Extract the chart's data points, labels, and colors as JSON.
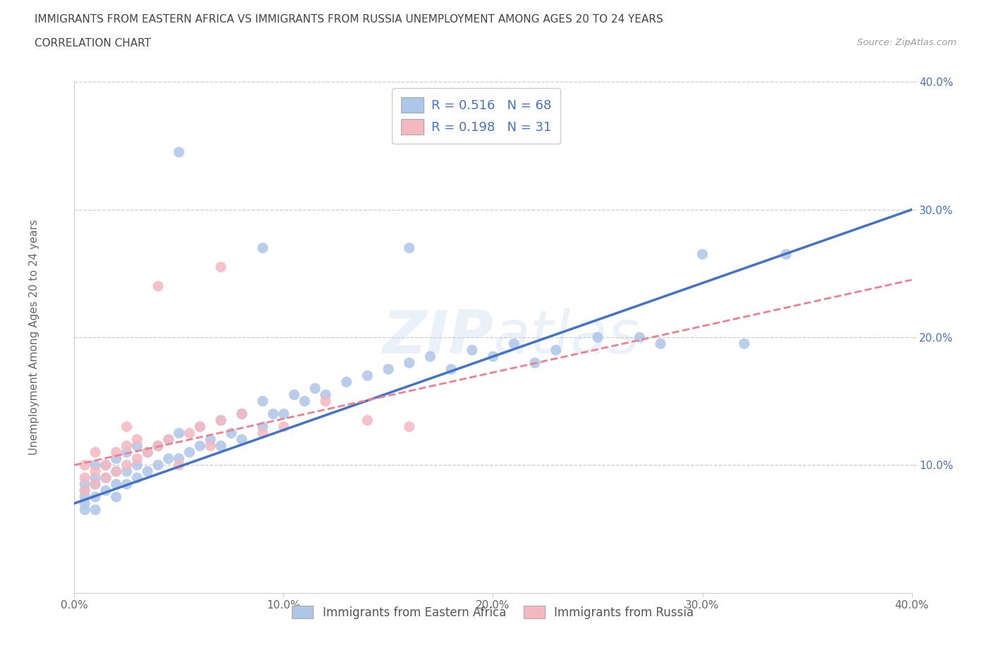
{
  "title_line1": "IMMIGRANTS FROM EASTERN AFRICA VS IMMIGRANTS FROM RUSSIA UNEMPLOYMENT AMONG AGES 20 TO 24 YEARS",
  "title_line2": "CORRELATION CHART",
  "source_text": "Source: ZipAtlas.com",
  "ylabel": "Unemployment Among Ages 20 to 24 years",
  "xlim": [
    0.0,
    0.4
  ],
  "ylim": [
    0.0,
    0.4
  ],
  "xticks": [
    0.0,
    0.1,
    0.2,
    0.3,
    0.4
  ],
  "yticks": [
    0.1,
    0.2,
    0.3,
    0.4
  ],
  "xticklabels": [
    "0.0%",
    "10.0%",
    "20.0%",
    "30.0%",
    "40.0%"
  ],
  "yticklabels": [
    "10.0%",
    "20.0%",
    "30.0%",
    "40.0%"
  ],
  "grid_color": "#cccccc",
  "background_color": "#ffffff",
  "watermark_text": "ZIPatlas",
  "ea_color": "#aec6e8",
  "ru_color": "#f4b8c1",
  "ea_line_color": "#4472c4",
  "ru_line_color": "#f08090",
  "legend_text_color": "#4472c4",
  "ytick_color": "#4472c4",
  "series": [
    {
      "label": "Immigrants from Eastern Africa",
      "R": 0.516,
      "N": 68,
      "x": [
        0.005,
        0.005,
        0.005,
        0.005,
        0.005,
        0.01,
        0.01,
        0.01,
        0.01,
        0.01,
        0.015,
        0.015,
        0.015,
        0.02,
        0.02,
        0.02,
        0.02,
        0.025,
        0.025,
        0.025,
        0.03,
        0.03,
        0.03,
        0.035,
        0.035,
        0.04,
        0.04,
        0.045,
        0.045,
        0.05,
        0.05,
        0.055,
        0.06,
        0.06,
        0.065,
        0.07,
        0.07,
        0.075,
        0.08,
        0.08,
        0.09,
        0.09,
        0.095,
        0.1,
        0.105,
        0.11,
        0.115,
        0.12,
        0.13,
        0.14,
        0.15,
        0.16,
        0.17,
        0.18,
        0.19,
        0.2,
        0.21,
        0.22,
        0.23,
        0.25,
        0.27,
        0.28,
        0.3,
        0.32,
        0.34,
        0.05,
        0.09,
        0.16
      ],
      "y": [
        0.065,
        0.07,
        0.075,
        0.08,
        0.085,
        0.065,
        0.075,
        0.085,
        0.09,
        0.1,
        0.08,
        0.09,
        0.1,
        0.075,
        0.085,
        0.095,
        0.105,
        0.085,
        0.095,
        0.11,
        0.09,
        0.1,
        0.115,
        0.095,
        0.11,
        0.1,
        0.115,
        0.105,
        0.12,
        0.105,
        0.125,
        0.11,
        0.115,
        0.13,
        0.12,
        0.115,
        0.135,
        0.125,
        0.12,
        0.14,
        0.13,
        0.15,
        0.14,
        0.14,
        0.155,
        0.15,
        0.16,
        0.155,
        0.165,
        0.17,
        0.175,
        0.18,
        0.185,
        0.175,
        0.19,
        0.185,
        0.195,
        0.18,
        0.19,
        0.2,
        0.2,
        0.195,
        0.265,
        0.195,
        0.265,
        0.345,
        0.27,
        0.27
      ]
    },
    {
      "label": "Immigrants from Russia",
      "R": 0.198,
      "N": 31,
      "x": [
        0.005,
        0.005,
        0.005,
        0.01,
        0.01,
        0.01,
        0.015,
        0.015,
        0.02,
        0.02,
        0.025,
        0.025,
        0.025,
        0.03,
        0.03,
        0.035,
        0.04,
        0.045,
        0.05,
        0.055,
        0.06,
        0.065,
        0.07,
        0.08,
        0.09,
        0.1,
        0.12,
        0.14,
        0.16,
        0.04,
        0.07
      ],
      "y": [
        0.08,
        0.09,
        0.1,
        0.085,
        0.095,
        0.11,
        0.09,
        0.1,
        0.095,
        0.11,
        0.1,
        0.115,
        0.13,
        0.105,
        0.12,
        0.11,
        0.115,
        0.12,
        0.1,
        0.125,
        0.13,
        0.115,
        0.135,
        0.14,
        0.125,
        0.13,
        0.15,
        0.135,
        0.13,
        0.24,
        0.255
      ]
    }
  ]
}
